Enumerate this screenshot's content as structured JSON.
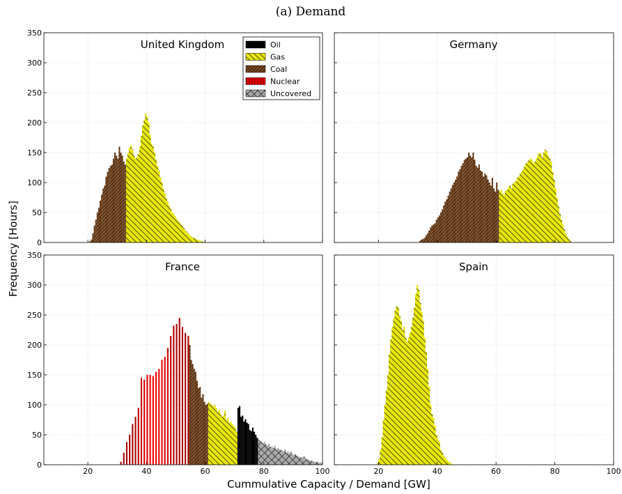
{
  "figure_title": "(a) Demand",
  "colors": {
    "Oil": "#000000",
    "Gas": "#e6e600",
    "Coal": "#7a4a22",
    "Nuclear": "#ee0000",
    "Uncovered": "#a6a6a6"
  },
  "chart_data": [
    {
      "type": "bar",
      "title": "United Kingdom",
      "xlabel": "Cummulative Capacity / Demand [GW]",
      "ylabel": "Frequency [Hours]",
      "xlim": [
        5,
        100
      ],
      "ylim": [
        0,
        350
      ],
      "xticks": [
        20,
        40,
        60,
        80,
        100
      ],
      "yticks": [
        0,
        50,
        100,
        150,
        200,
        250,
        300,
        350
      ],
      "grid": true,
      "legend_position": "top-right",
      "legend": [
        "Oil",
        "Gas",
        "Coal",
        "Nuclear",
        "Uncovered"
      ],
      "series": [
        {
          "name": "Coal",
          "x": [
            20.5,
            21,
            21.5,
            22,
            22.5,
            23,
            23.5,
            24,
            24.5,
            25,
            25.5,
            26,
            26.5,
            27,
            27.5,
            28,
            28.5,
            29,
            29.5,
            30,
            30.5,
            31,
            31.5,
            32,
            32.5
          ],
          "values": [
            2,
            5,
            15,
            28,
            38,
            50,
            58,
            70,
            80,
            90,
            95,
            110,
            118,
            124,
            128,
            130,
            140,
            150,
            145,
            140,
            160,
            150,
            145,
            135,
            130
          ]
        },
        {
          "name": "Gas",
          "x": [
            33,
            33.5,
            34,
            34.5,
            35,
            35.5,
            36,
            36.5,
            37,
            37.5,
            38,
            38.5,
            39,
            39.5,
            40,
            40.5,
            41,
            41.5,
            42,
            42.5,
            43,
            43.5,
            44,
            44.5,
            45,
            45.5,
            46,
            46.5,
            47,
            47.5,
            48,
            48.5,
            49,
            49.5,
            50,
            50.5,
            51,
            51.5,
            52,
            52.5,
            53,
            53.5,
            54,
            54.5,
            55,
            55.5,
            56,
            56.5,
            57,
            57.5,
            58,
            58.5,
            59,
            59.5
          ],
          "values": [
            140,
            150,
            158,
            162,
            155,
            145,
            140,
            142,
            148,
            160,
            178,
            195,
            205,
            215,
            210,
            200,
            180,
            165,
            160,
            150,
            138,
            128,
            120,
            108,
            100,
            90,
            82,
            74,
            68,
            62,
            56,
            50,
            48,
            44,
            40,
            36,
            34,
            30,
            28,
            24,
            20,
            18,
            15,
            12,
            10,
            8,
            7,
            6,
            5,
            4,
            3,
            2,
            1,
            1
          ]
        }
      ]
    },
    {
      "type": "bar",
      "title": "Germany",
      "xlim": [
        5,
        100
      ],
      "ylim": [
        0,
        350
      ],
      "xticks": [
        20,
        40,
        60,
        80,
        100
      ],
      "yticks": [
        0,
        50,
        100,
        150,
        200,
        250,
        300,
        350
      ],
      "grid": true,
      "series": [
        {
          "name": "Coal",
          "x": [
            34,
            34.5,
            35,
            35.5,
            36,
            36.5,
            37,
            37.5,
            38,
            38.5,
            39,
            39.5,
            40,
            40.5,
            41,
            41.5,
            42,
            42.5,
            43,
            43.5,
            44,
            44.5,
            45,
            45.5,
            46,
            46.5,
            47,
            47.5,
            48,
            48.5,
            49,
            49.5,
            50,
            50.5,
            51,
            51.5,
            52,
            52.5,
            53,
            53.5,
            54,
            54.5,
            55,
            55.5,
            56,
            56.5,
            57,
            57.5,
            58,
            58.5,
            59,
            59.5,
            60,
            60.5
          ],
          "values": [
            3,
            5,
            6,
            8,
            12,
            15,
            20,
            25,
            28,
            30,
            32,
            38,
            42,
            45,
            50,
            55,
            62,
            68,
            72,
            78,
            85,
            90,
            96,
            100,
            105,
            110,
            118,
            122,
            128,
            132,
            138,
            140,
            142,
            150,
            145,
            142,
            150,
            138,
            128,
            125,
            130,
            120,
            118,
            110,
            115,
            112,
            105,
            100,
            95,
            108,
            90,
            85,
            100,
            88
          ]
        },
        {
          "name": "Gas",
          "x": [
            61,
            61.5,
            62,
            62.5,
            63,
            63.5,
            64,
            64.5,
            65,
            65.5,
            66,
            66.5,
            67,
            67.5,
            68,
            68.5,
            69,
            69.5,
            70,
            70.5,
            71,
            71.5,
            72,
            72.5,
            73,
            73.5,
            74,
            74.5,
            75,
            75.5,
            76,
            76.5,
            77,
            77.5,
            78,
            78.5,
            79,
            79.5,
            80,
            80.5,
            81,
            81.5,
            82,
            82.5,
            83,
            83.5,
            84,
            84.5,
            85
          ],
          "values": [
            85,
            88,
            82,
            80,
            86,
            88,
            92,
            95,
            90,
            98,
            100,
            102,
            108,
            110,
            115,
            118,
            122,
            128,
            132,
            135,
            138,
            140,
            138,
            132,
            135,
            140,
            145,
            150,
            148,
            142,
            150,
            155,
            152,
            145,
            140,
            135,
            118,
            105,
            90,
            75,
            60,
            48,
            38,
            30,
            22,
            15,
            10,
            6,
            3
          ]
        }
      ]
    },
    {
      "type": "bar",
      "title": "France",
      "xlim": [
        5,
        100
      ],
      "ylim": [
        0,
        350
      ],
      "xticks": [
        20,
        40,
        60,
        80,
        100
      ],
      "yticks": [
        0,
        50,
        100,
        150,
        200,
        250,
        300,
        350
      ],
      "grid": true,
      "series": [
        {
          "name": "Nuclear",
          "x": [
            31,
            32,
            33,
            34,
            35,
            36,
            37,
            38,
            39,
            40,
            41,
            42,
            43,
            44,
            45,
            46,
            47,
            48,
            49,
            50,
            51,
            52,
            53,
            54
          ],
          "values": [
            5,
            20,
            38,
            50,
            68,
            80,
            95,
            145,
            142,
            150,
            150,
            148,
            155,
            160,
            175,
            180,
            195,
            215,
            232,
            235,
            245,
            230,
            220,
            215
          ]
        },
        {
          "name": "Coal",
          "x": [
            54.5,
            55,
            55.5,
            56,
            56.5,
            57,
            57.5,
            58,
            58.5,
            59,
            59.5,
            60,
            60.5
          ],
          "values": [
            200,
            175,
            168,
            160,
            155,
            140,
            128,
            130,
            112,
            118,
            105,
            100,
            102
          ]
        },
        {
          "name": "Gas",
          "x": [
            61,
            61.5,
            62,
            62.5,
            63,
            63.5,
            64,
            64.5,
            65,
            65.5,
            66,
            66.5,
            67,
            67.5,
            68,
            68.5,
            69,
            69.5,
            70,
            70.5
          ],
          "values": [
            105,
            102,
            100,
            98,
            100,
            95,
            88,
            92,
            85,
            80,
            82,
            90,
            75,
            78,
            70,
            72,
            68,
            65,
            62,
            55
          ]
        },
        {
          "name": "Oil",
          "x": [
            71,
            71.5,
            72,
            72.5,
            73,
            73.5,
            74,
            74.5,
            75,
            75.5,
            76,
            76.5,
            77,
            77.5
          ],
          "values": [
            95,
            98,
            80,
            82,
            72,
            76,
            70,
            68,
            58,
            56,
            62,
            55,
            50,
            45
          ]
        },
        {
          "name": "Uncovered",
          "x": [
            78,
            78.5,
            79,
            79.5,
            80,
            80.5,
            81,
            81.5,
            82,
            82.5,
            83,
            83.5,
            84,
            84.5,
            85,
            85.5,
            86,
            86.5,
            87,
            87.5,
            88,
            88.5,
            89,
            89.5,
            90,
            90.5,
            91,
            91.5,
            92,
            92.5,
            93,
            93.5,
            94,
            94.5,
            95,
            95.5,
            96,
            96.5,
            97,
            97.5,
            98,
            98.5,
            99,
            99.5
          ],
          "values": [
            42,
            40,
            38,
            36,
            38,
            34,
            32,
            35,
            30,
            30,
            28,
            32,
            26,
            28,
            26,
            25,
            24,
            22,
            26,
            20,
            22,
            19,
            22,
            18,
            16,
            18,
            15,
            14,
            13,
            12,
            12,
            14,
            10,
            9,
            8,
            7,
            7,
            6,
            5,
            4,
            5,
            3,
            4,
            3
          ]
        }
      ]
    },
    {
      "type": "bar",
      "title": "Spain",
      "xlim": [
        5,
        100
      ],
      "ylim": [
        0,
        350
      ],
      "xticks": [
        20,
        40,
        60,
        80,
        100
      ],
      "yticks": [
        0,
        50,
        100,
        150,
        200,
        250,
        300,
        350
      ],
      "grid": true,
      "series": [
        {
          "name": "Gas",
          "x": [
            19.5,
            20,
            20.5,
            21,
            21.5,
            22,
            22.5,
            23,
            23.5,
            24,
            24.5,
            25,
            25.5,
            26,
            26.5,
            27,
            27.5,
            28,
            28.5,
            29,
            29.5,
            30,
            30.5,
            31,
            31.5,
            32,
            32.5,
            33,
            33.5,
            34,
            34.5,
            35,
            35.5,
            36,
            36.5,
            37,
            37.5,
            38,
            38.5,
            39,
            39.5,
            40,
            40.5,
            41,
            41.5,
            42,
            42.5,
            43,
            43.5,
            44,
            44.5
          ],
          "values": [
            3,
            10,
            25,
            45,
            75,
            100,
            125,
            150,
            185,
            210,
            230,
            245,
            258,
            265,
            262,
            248,
            240,
            225,
            230,
            212,
            205,
            212,
            220,
            230,
            245,
            262,
            285,
            300,
            292,
            270,
            255,
            240,
            212,
            188,
            160,
            130,
            100,
            85,
            78,
            65,
            50,
            42,
            38,
            25,
            20,
            15,
            12,
            8,
            6,
            4,
            2
          ]
        }
      ]
    }
  ]
}
